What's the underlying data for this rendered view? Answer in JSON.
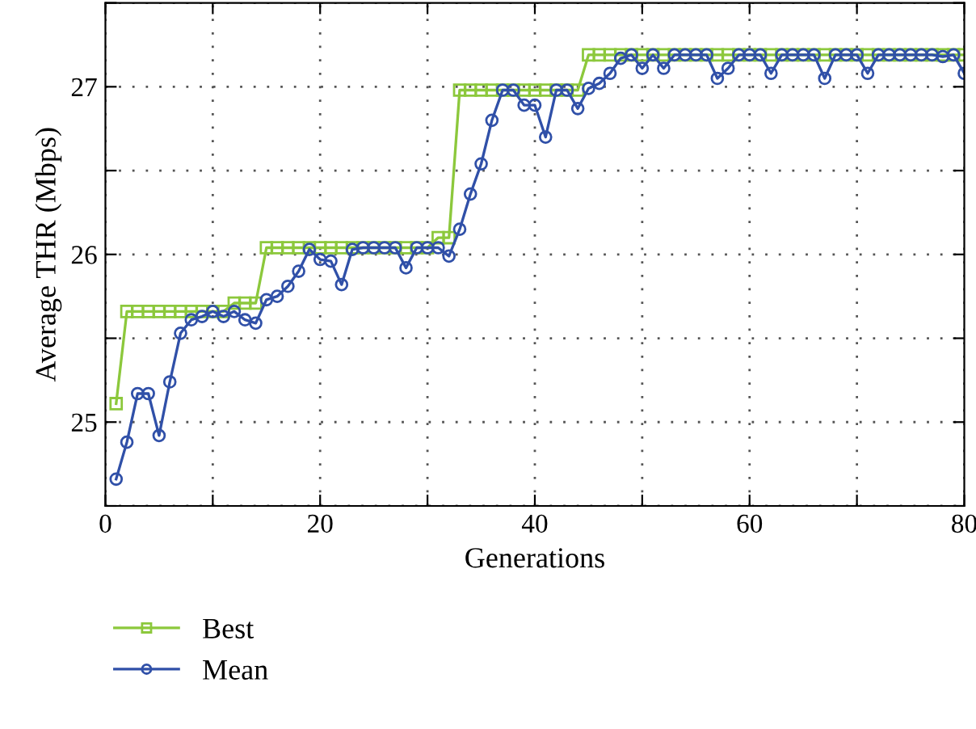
{
  "chart_data": {
    "type": "line",
    "xlabel": "Generations",
    "ylabel": "Average THR (Mbps)",
    "x": [
      1,
      2,
      3,
      4,
      5,
      6,
      7,
      8,
      9,
      10,
      11,
      12,
      13,
      14,
      15,
      16,
      17,
      18,
      19,
      20,
      21,
      22,
      23,
      24,
      25,
      26,
      27,
      28,
      29,
      30,
      31,
      32,
      33,
      34,
      35,
      36,
      37,
      38,
      39,
      40,
      41,
      42,
      43,
      44,
      45,
      46,
      47,
      48,
      49,
      50,
      51,
      52,
      53,
      54,
      55,
      56,
      57,
      58,
      59,
      60,
      61,
      62,
      63,
      64,
      65,
      66,
      67,
      68,
      69,
      70,
      71,
      72,
      73,
      74,
      75,
      76,
      77,
      78,
      79,
      80
    ],
    "series": [
      {
        "name": "Best",
        "color": "#8cc83c",
        "marker": "square",
        "values": [
          25.11,
          25.66,
          25.66,
          25.66,
          25.66,
          25.66,
          25.66,
          25.66,
          25.66,
          25.66,
          25.66,
          25.71,
          25.71,
          25.71,
          26.04,
          26.04,
          26.04,
          26.04,
          26.04,
          26.04,
          26.04,
          26.04,
          26.04,
          26.04,
          26.04,
          26.04,
          26.04,
          26.04,
          26.04,
          26.04,
          26.1,
          26.1,
          26.98,
          26.98,
          26.98,
          26.98,
          26.98,
          26.98,
          26.98,
          26.98,
          26.98,
          26.98,
          26.98,
          26.98,
          27.19,
          27.19,
          27.19,
          27.19,
          27.19,
          27.19,
          27.19,
          27.19,
          27.19,
          27.19,
          27.19,
          27.19,
          27.19,
          27.19,
          27.19,
          27.19,
          27.19,
          27.19,
          27.19,
          27.19,
          27.19,
          27.19,
          27.19,
          27.19,
          27.19,
          27.19,
          27.19,
          27.19,
          27.19,
          27.19,
          27.19,
          27.19,
          27.19,
          27.19,
          27.19,
          27.19
        ]
      },
      {
        "name": "Mean",
        "color": "#3050a8",
        "marker": "circle",
        "values": [
          24.66,
          24.88,
          25.17,
          25.17,
          24.92,
          25.24,
          25.53,
          25.61,
          25.63,
          25.66,
          25.63,
          25.66,
          25.61,
          25.59,
          25.73,
          25.75,
          25.81,
          25.9,
          26.03,
          25.97,
          25.96,
          25.82,
          26.03,
          26.04,
          26.04,
          26.04,
          26.04,
          25.92,
          26.04,
          26.04,
          26.04,
          25.99,
          26.15,
          26.36,
          26.54,
          26.8,
          26.98,
          26.98,
          26.89,
          26.89,
          26.7,
          26.98,
          26.98,
          26.87,
          26.99,
          27.02,
          27.08,
          27.17,
          27.19,
          27.11,
          27.19,
          27.11,
          27.19,
          27.19,
          27.19,
          27.19,
          27.05,
          27.11,
          27.19,
          27.19,
          27.19,
          27.08,
          27.19,
          27.19,
          27.19,
          27.19,
          27.05,
          27.19,
          27.19,
          27.19,
          27.08,
          27.19,
          27.19,
          27.19,
          27.19,
          27.19,
          27.19,
          27.18,
          27.19,
          27.08
        ]
      }
    ],
    "xlim": [
      0,
      80
    ],
    "xticks": [
      0,
      {
        "value": 10,
        "label": null
      },
      20,
      {
        "value": 30,
        "label": null
      },
      40,
      {
        "value": 50,
        "label": null
      },
      60,
      {
        "value": 70,
        "label": null
      },
      80
    ],
    "ylim": [
      24.5,
      27.5
    ],
    "yticks": [
      {
        "value": 24.5,
        "label": null
      },
      25,
      {
        "value": 25.5,
        "label": null
      },
      26,
      {
        "value": 26.5,
        "label": null
      },
      27,
      {
        "value": 27.5,
        "label": null
      }
    ],
    "grid": true,
    "legend": "bottom",
    "line_style": "solid"
  }
}
